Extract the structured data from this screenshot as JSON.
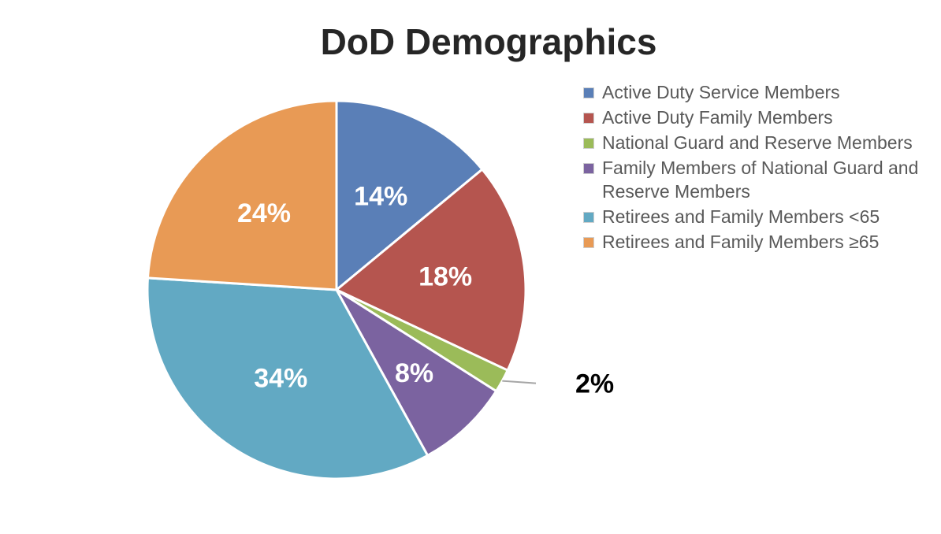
{
  "chart_data": {
    "type": "pie",
    "title": "DoD Demographics",
    "legend_position": "right",
    "slices": [
      {
        "label": "Active Duty Service Members",
        "value": 14,
        "display": "14%",
        "color": "#5a7fb7"
      },
      {
        "label": "Active Duty Family Members",
        "value": 18,
        "display": "18%",
        "color": "#b5554f"
      },
      {
        "label": "National Guard and Reserve Members",
        "value": 2,
        "display": "2%",
        "color": "#9bbb59"
      },
      {
        "label": "Family Members of National Guard and Reserve Members",
        "value": 8,
        "display": "8%",
        "color": "#7b63a0"
      },
      {
        "label": "Retirees and Family Members <65",
        "value": 34,
        "display": "34%",
        "color": "#62a9c3"
      },
      {
        "label": "Retirees and Family Members ≥65",
        "value": 24,
        "display": "24%",
        "color": "#e89a55"
      }
    ]
  }
}
